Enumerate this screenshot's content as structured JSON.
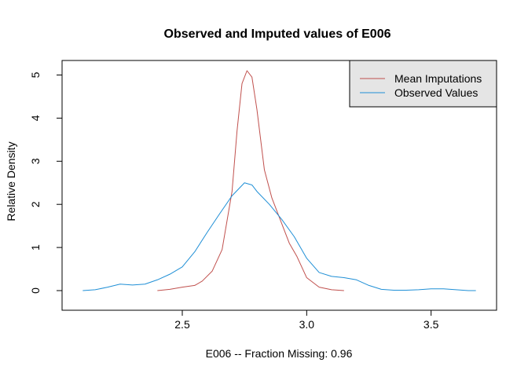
{
  "chart_data": {
    "type": "line",
    "title": "Observed and Imputed values of E006",
    "xlabel": "E006  --  Fraction Missing: 0.96",
    "ylabel": "Relative Density",
    "xlim": [
      2.08,
      3.7
    ],
    "ylim": [
      0,
      5.1
    ],
    "xticks": [
      2.5,
      3.0,
      3.5
    ],
    "xtick_labels": [
      "2.5",
      "3.0",
      "3.5"
    ],
    "yticks": [
      0,
      1,
      2,
      3,
      4,
      5
    ],
    "ytick_labels": [
      "0",
      "1",
      "2",
      "3",
      "4",
      "5"
    ],
    "legend_position": "top-right",
    "series": [
      {
        "name": "Mean Imputations",
        "color": "#c0504d",
        "x": [
          2.4,
          2.45,
          2.5,
          2.55,
          2.58,
          2.62,
          2.66,
          2.7,
          2.72,
          2.74,
          2.76,
          2.78,
          2.8,
          2.83,
          2.86,
          2.9,
          2.93,
          2.96,
          3.0,
          3.05,
          3.1,
          3.15
        ],
        "y": [
          0.0,
          0.03,
          0.08,
          0.12,
          0.22,
          0.45,
          0.95,
          2.3,
          3.7,
          4.8,
          5.1,
          4.95,
          4.2,
          2.8,
          2.15,
          1.55,
          1.1,
          0.8,
          0.3,
          0.08,
          0.02,
          0.0
        ]
      },
      {
        "name": "Observed Values",
        "color": "#1f8fd6",
        "x": [
          2.1,
          2.15,
          2.2,
          2.25,
          2.3,
          2.35,
          2.4,
          2.45,
          2.5,
          2.55,
          2.6,
          2.65,
          2.7,
          2.75,
          2.78,
          2.8,
          2.85,
          2.9,
          2.95,
          3.0,
          3.05,
          3.1,
          3.15,
          3.2,
          3.25,
          3.3,
          3.35,
          3.4,
          3.45,
          3.5,
          3.55,
          3.6,
          3.65,
          3.68
        ],
        "y": [
          0.0,
          0.02,
          0.08,
          0.15,
          0.13,
          0.15,
          0.25,
          0.38,
          0.55,
          0.9,
          1.35,
          1.78,
          2.2,
          2.5,
          2.45,
          2.3,
          2.0,
          1.65,
          1.25,
          0.75,
          0.42,
          0.33,
          0.3,
          0.25,
          0.12,
          0.03,
          0.01,
          0.01,
          0.02,
          0.04,
          0.04,
          0.02,
          0.0,
          0.0
        ]
      }
    ]
  }
}
